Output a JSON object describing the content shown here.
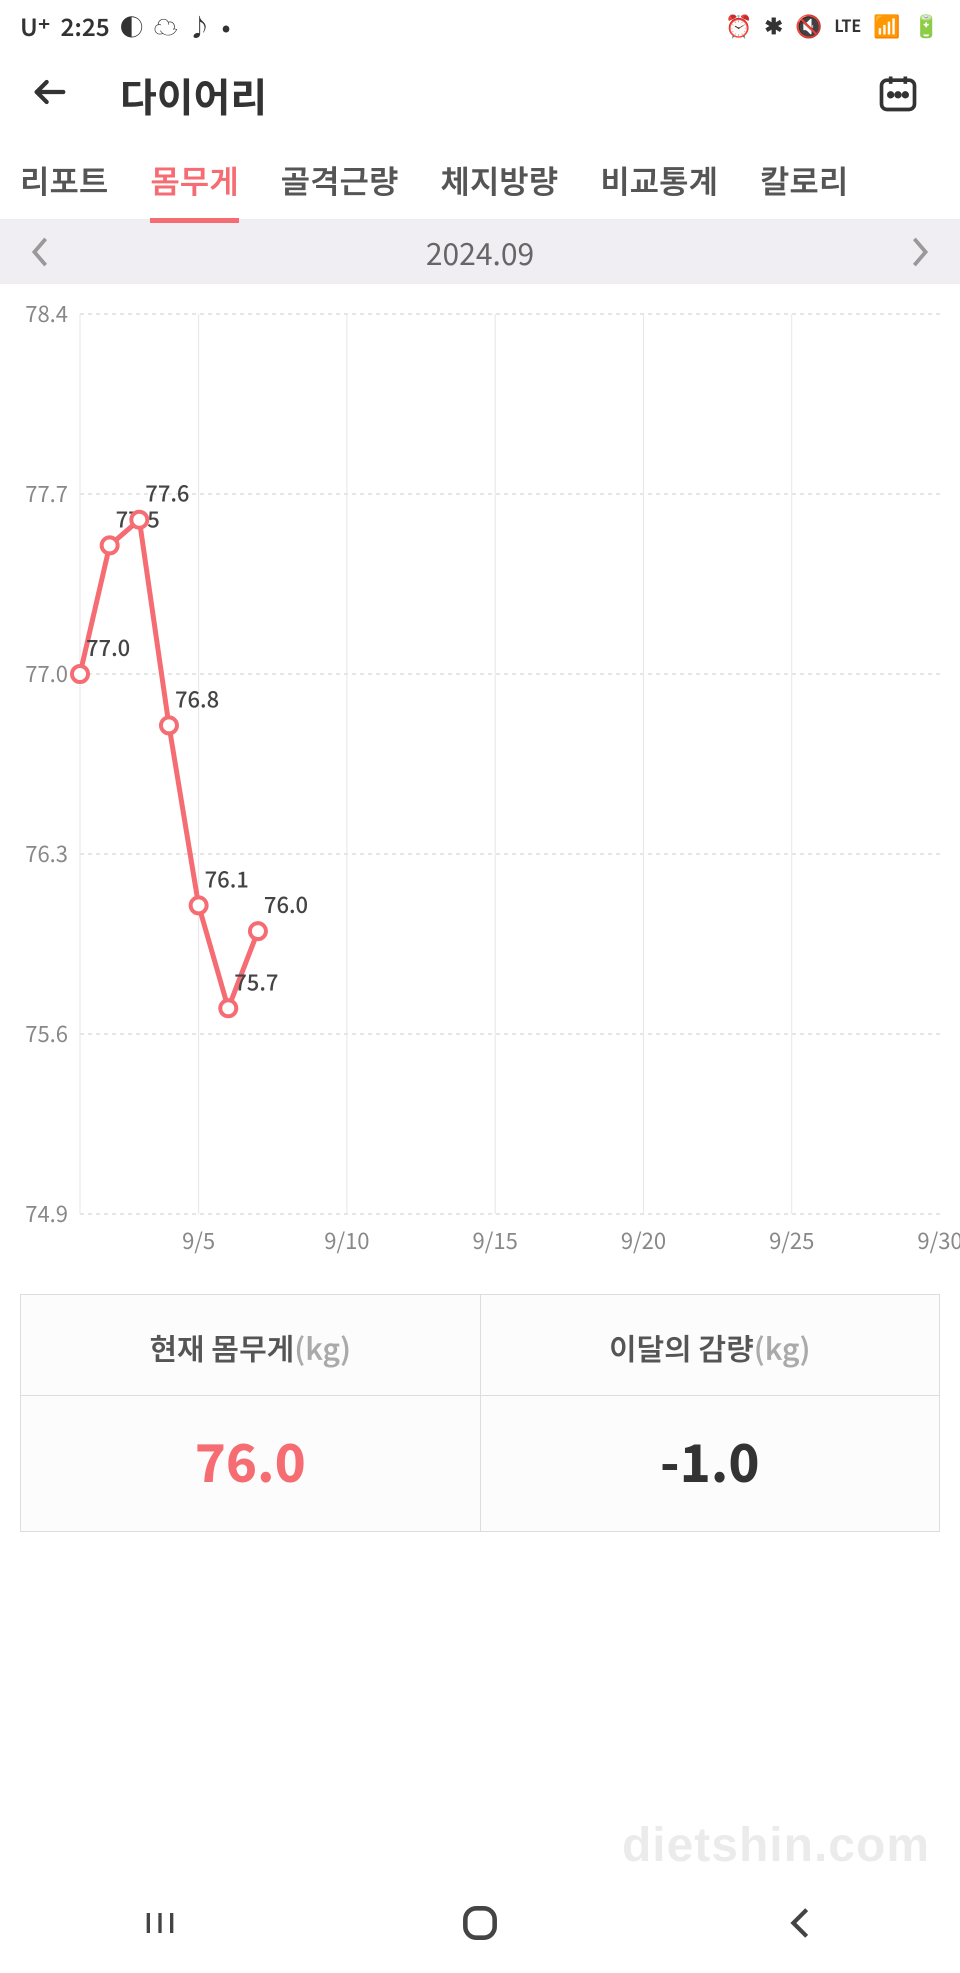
{
  "status": {
    "carrier": "U⁺",
    "time": "2:25",
    "icons_left": [
      "◐",
      "☁",
      "♪",
      "•"
    ],
    "icons_right": [
      "⏰",
      "✱",
      "🔇",
      "LTE",
      "📶",
      "🔋"
    ]
  },
  "header": {
    "title": "다이어리"
  },
  "tabs": {
    "items": [
      {
        "label": "리포트",
        "active": false
      },
      {
        "label": "몸무게",
        "active": true
      },
      {
        "label": "골격근량",
        "active": false
      },
      {
        "label": "체지방량",
        "active": false
      },
      {
        "label": "비교통계",
        "active": false
      },
      {
        "label": "칼로리",
        "active": false
      }
    ]
  },
  "monthbar": {
    "label": "2024.09"
  },
  "chart": {
    "type": "line",
    "line_color": "#f56c73",
    "marker_fill": "#ffffff",
    "marker_stroke": "#f56c73",
    "line_width": 5,
    "marker_radius": 8,
    "grid_color": "#e6e6e6",
    "dash_color": "#cccccc",
    "axis_text_color": "#888888",
    "label_text_color": "#444444",
    "axis_fontsize": 22,
    "label_fontsize": 22,
    "y_ticks": [
      78.4,
      77.7,
      77.0,
      76.3,
      75.6,
      74.9
    ],
    "x_ticks": [
      {
        "day": 5,
        "label": "9/5"
      },
      {
        "day": 10,
        "label": "9/10"
      },
      {
        "day": 15,
        "label": "9/15"
      },
      {
        "day": 20,
        "label": "9/20"
      },
      {
        "day": 25,
        "label": "9/25"
      },
      {
        "day": 30,
        "label": "9/30"
      }
    ],
    "x_domain": [
      1,
      30
    ],
    "y_domain": [
      74.9,
      78.4
    ],
    "vgrid_days": [
      5,
      10,
      15,
      20,
      25
    ],
    "points": [
      {
        "day": 1,
        "value": 77.0,
        "label": "77.0"
      },
      {
        "day": 2,
        "value": 77.5,
        "label": "77.5"
      },
      {
        "day": 3,
        "value": 77.6,
        "label": "77.6"
      },
      {
        "day": 4,
        "value": 76.8,
        "label": "76.8"
      },
      {
        "day": 5,
        "value": 76.1,
        "label": "76.1"
      },
      {
        "day": 6,
        "value": 75.7,
        "label": "75.7"
      },
      {
        "day": 7,
        "value": 76.0,
        "label": "76.0"
      }
    ]
  },
  "stats": {
    "current": {
      "label": "현재 몸무게",
      "unit": "(kg)",
      "value": "76.0"
    },
    "monthly": {
      "label": "이달의 감량",
      "unit": "(kg)",
      "value": "-1.0"
    }
  },
  "watermark": "dietshin.com"
}
